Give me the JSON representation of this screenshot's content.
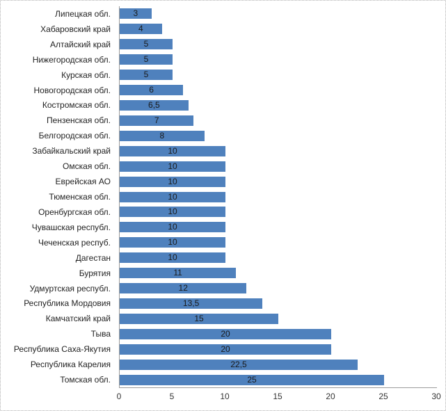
{
  "chart_data": {
    "type": "bar",
    "orientation": "horizontal",
    "title": "",
    "xlabel": "",
    "ylabel": "",
    "xlim": [
      0,
      30
    ],
    "x_ticks": [
      0,
      5,
      10,
      15,
      20,
      25,
      30
    ],
    "grid": "off",
    "legend": "none",
    "categories": [
      "Липецкая обл.",
      "Хабаровский край",
      "Алтайский край",
      "Нижегородская обл.",
      "Курская обл.",
      "Новогородская обл.",
      "Костромская обл.",
      "Пензенская обл.",
      "Белгородская обл.",
      "Забайкальский край",
      "Омская обл.",
      "Еврейская АО",
      "Тюменская обл.",
      "Оренбургская обл.",
      "Чувашская республ.",
      "Чеченская респуб.",
      "Дагестан",
      "Бурятия",
      "Удмуртская республ.",
      "Республика Мордовия",
      "Камчатский край",
      "Тыва",
      "Республика  Саха-Якутия",
      "Республика Карелия",
      "Томская обл."
    ],
    "values": [
      3,
      4,
      5,
      5,
      5,
      6,
      6.5,
      7,
      8,
      10,
      10,
      10,
      10,
      10,
      10,
      10,
      10,
      11,
      12,
      13.5,
      15,
      20,
      20,
      22.5,
      25
    ],
    "value_labels": [
      "3",
      "4",
      "5",
      "5",
      "5",
      "6",
      "6,5",
      "7",
      "8",
      "10",
      "10",
      "10",
      "10",
      "10",
      "10",
      "10",
      "10",
      "11",
      "12",
      "13,5",
      "15",
      "20",
      "20",
      "22,5",
      "25"
    ],
    "x_tick_labels": [
      "0",
      "5",
      "10",
      "15",
      "20",
      "25",
      "30"
    ]
  },
  "colors": {
    "bar_fill": "#4F81BD",
    "axis_line": "#9b9b9b",
    "category_text": "#1f1f1f",
    "value_text": "#1a1a1a",
    "tick_text": "#333333",
    "background": "#ffffff",
    "border": "#b0b0b0"
  }
}
